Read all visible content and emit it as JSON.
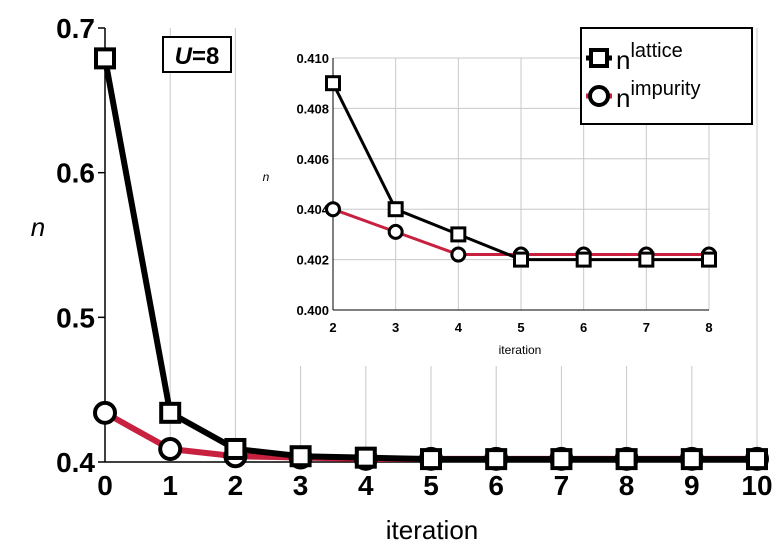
{
  "chart_data": [
    {
      "type": "line",
      "title": "",
      "xlabel": "iteration",
      "ylabel": "n",
      "xlim": [
        0,
        10
      ],
      "ylim": [
        0.4,
        0.7
      ],
      "x_ticks": [
        "0",
        "1",
        "2",
        "3",
        "4",
        "5",
        "6",
        "7",
        "8",
        "9",
        "10"
      ],
      "y_ticks": [
        "0.4",
        "0.5",
        "0.6",
        "0.7"
      ],
      "grid": "vertical",
      "x": [
        0,
        1,
        2,
        3,
        4,
        5,
        6,
        7,
        8,
        9,
        10
      ],
      "series": [
        {
          "name": "n",
          "name_sup": "lattice",
          "color": "#000000",
          "marker": "square",
          "values": [
            0.679,
            0.434,
            0.409,
            0.404,
            0.403,
            0.402,
            0.402,
            0.402,
            0.402,
            0.402,
            0.402
          ]
        },
        {
          "name": "n",
          "name_sup": "impurity",
          "color": "#c8203f",
          "marker": "circle",
          "values": [
            0.434,
            0.409,
            0.404,
            0.4031,
            0.4022,
            0.4022,
            0.4022,
            0.4022,
            0.4022,
            0.4022,
            0.4022
          ]
        }
      ],
      "annotation": {
        "italic": "U",
        "rest": "=8"
      },
      "legend_position": "top-right"
    },
    {
      "type": "line",
      "title": "",
      "xlabel": "iteration",
      "ylabel": "n",
      "xlim": [
        2,
        8
      ],
      "ylim": [
        0.4,
        0.41
      ],
      "x_ticks": [
        "2",
        "3",
        "4",
        "5",
        "6",
        "7",
        "8"
      ],
      "y_ticks": [
        "0.400",
        "0.402",
        "0.404",
        "0.406",
        "0.408",
        "0.410"
      ],
      "grid": "both",
      "x": [
        2,
        3,
        4,
        5,
        6,
        7,
        8
      ],
      "series": [
        {
          "name": "n",
          "name_sup": "lattice",
          "color": "#000000",
          "marker": "square",
          "values": [
            0.409,
            0.404,
            0.403,
            0.402,
            0.402,
            0.402,
            0.402
          ]
        },
        {
          "name": "n",
          "name_sup": "impurity",
          "color": "#c8203f",
          "marker": "circle",
          "values": [
            0.404,
            0.4031,
            0.4022,
            0.4022,
            0.4022,
            0.4022,
            0.4022
          ]
        }
      ]
    }
  ]
}
